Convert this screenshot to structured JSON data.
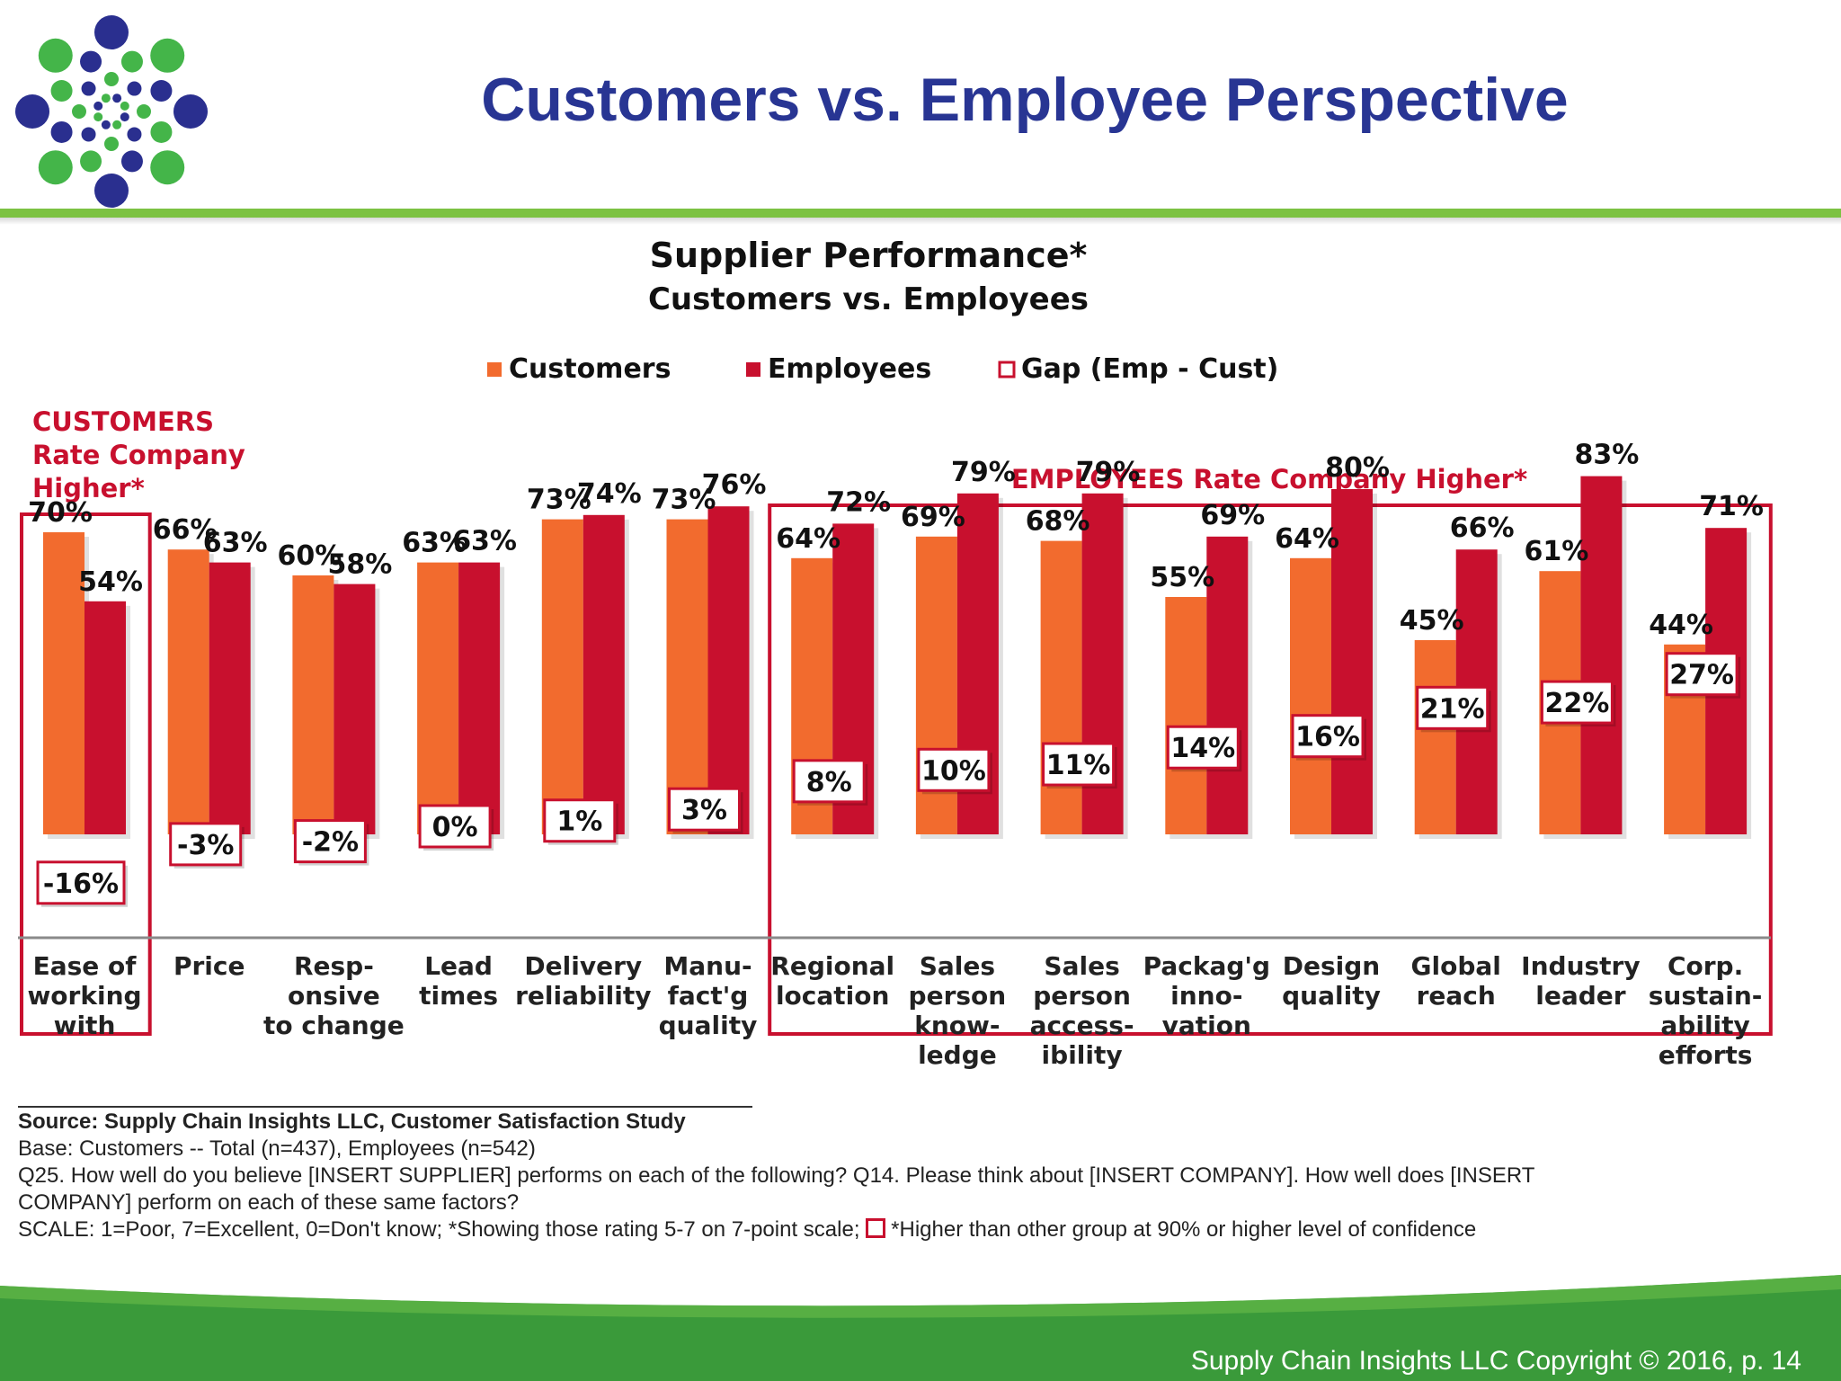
{
  "slide": {
    "title": "Customers vs. Employee Perspective",
    "copyright": "Supply Chain Insights LLC Copyright © 2016, p. 14"
  },
  "source": {
    "line1": "Source:  Supply Chain Insights LLC, Customer Satisfaction Study",
    "line2": "Base: Customers -- Total (n=437), Employees (n=542)",
    "line3": "Q25. How well do you believe [INSERT SUPPLIER] performs on each of the following? Q14. Please think about [INSERT COMPANY]. How well does [INSERT",
    "line4": "COMPANY] perform on each of these same factors?",
    "line5a": "SCALE: 1=Poor, 7=Excellent, 0=Don't know;  *Showing those rating 5-7 on 7-point scale;",
    "line5b": "*Higher than other group at 90% or higher level of confidence"
  },
  "chart_data": {
    "type": "bar",
    "title": "Supplier Performance*",
    "subtitle": "Customers vs. Employees",
    "legend_placement": "top-center",
    "unit": "%",
    "ylim": [
      0,
      100
    ],
    "categories": [
      "Ease of working with",
      "Price",
      "Resp-onsive to change",
      "Lead times",
      "Delivery reliability",
      "Manu-fact'g quality",
      "Regional location",
      "Sales person know-ledge",
      "Sales person access-ibility",
      "Packag'g inno-vation",
      "Design quality",
      "Global reach",
      "Industry leader",
      "Corp. sustain-ability efforts"
    ],
    "category_lines": [
      [
        "Ease of",
        "working",
        "with"
      ],
      [
        "Price"
      ],
      [
        "Resp-",
        "onsive",
        "to change"
      ],
      [
        "Lead",
        "times"
      ],
      [
        "Delivery",
        "reliability"
      ],
      [
        "Manu-",
        "fact'g",
        "quality"
      ],
      [
        "Regional",
        "location"
      ],
      [
        "Sales",
        "person",
        "know-",
        "ledge"
      ],
      [
        "Sales",
        "person",
        "access-",
        "ibility"
      ],
      [
        "Packag'g",
        "inno-",
        "vation"
      ],
      [
        "Design",
        "quality"
      ],
      [
        "Global",
        "reach"
      ],
      [
        "Industry",
        "leader"
      ],
      [
        "Corp.",
        "sustain-",
        "ability",
        "efforts"
      ]
    ],
    "series": [
      {
        "name": "Customers",
        "color": "#f26b2e",
        "values": [
          70,
          66,
          60,
          63,
          73,
          73,
          64,
          69,
          68,
          55,
          64,
          45,
          61,
          44
        ]
      },
      {
        "name": "Employees",
        "color": "#c8102e",
        "values": [
          54,
          63,
          58,
          63,
          74,
          76,
          72,
          79,
          79,
          69,
          80,
          66,
          83,
          71
        ]
      }
    ],
    "gap": {
      "name": "Gap (Emp - Cust)",
      "values": [
        -16,
        -3,
        -2,
        0,
        1,
        3,
        8,
        10,
        11,
        14,
        16,
        21,
        22,
        27
      ]
    },
    "annotations": {
      "customers_higher": [
        "CUSTOMERS",
        "Rate Company",
        "Higher*"
      ],
      "employees_higher": "EMPLOYEES Rate Company Higher*"
    }
  }
}
